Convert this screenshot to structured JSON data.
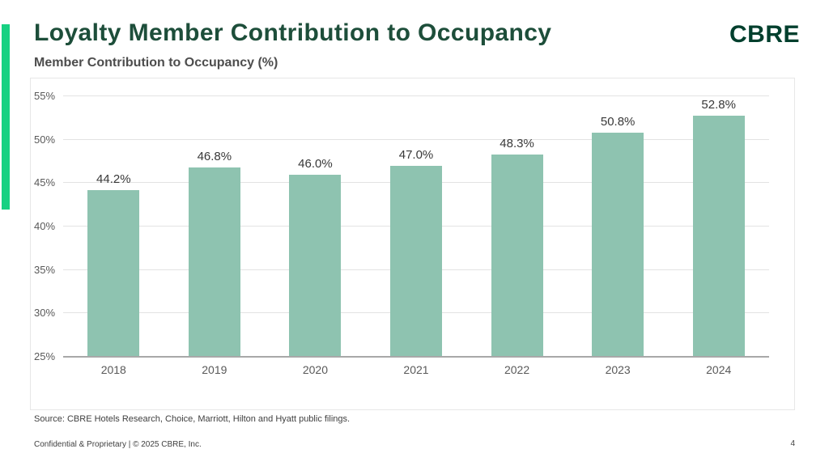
{
  "header": {
    "title": "Loyalty Member Contribution to Occupancy",
    "logo": "CBRE"
  },
  "chart": {
    "subtitle": "Member Contribution to Occupancy (%)"
  },
  "chart_data": {
    "type": "bar",
    "title": "Member Contribution to Occupancy (%)",
    "categories": [
      "2018",
      "2019",
      "2020",
      "2021",
      "2022",
      "2023",
      "2024"
    ],
    "values": [
      44.2,
      46.8,
      46.0,
      47.0,
      48.3,
      50.8,
      52.8
    ],
    "value_labels": [
      "44.2%",
      "46.8%",
      "46.0%",
      "47.0%",
      "48.3%",
      "50.8%",
      "52.8%"
    ],
    "xlabel": "",
    "ylabel": "",
    "ylim": [
      25,
      55
    ],
    "ytick_step": 5,
    "ytick_labels": [
      "25%",
      "30%",
      "35%",
      "40%",
      "45%",
      "50%",
      "55%"
    ],
    "grid": true,
    "legend": false,
    "bar_color": "#8EC3B0"
  },
  "colors": {
    "accent_green": "#17D182",
    "brand_green": "#003F2D",
    "title_green": "#1D4E3A",
    "bar_fill": "#8EC3B0",
    "gridline": "#E3E3E3",
    "axis_line": "#A8A8A8"
  },
  "footer": {
    "source": "Source: CBRE Hotels Research, Choice, Marriott, Hilton and Hyatt public filings.",
    "confidential": "Confidential & Proprietary | © 2025 CBRE, Inc.",
    "page": "4"
  }
}
